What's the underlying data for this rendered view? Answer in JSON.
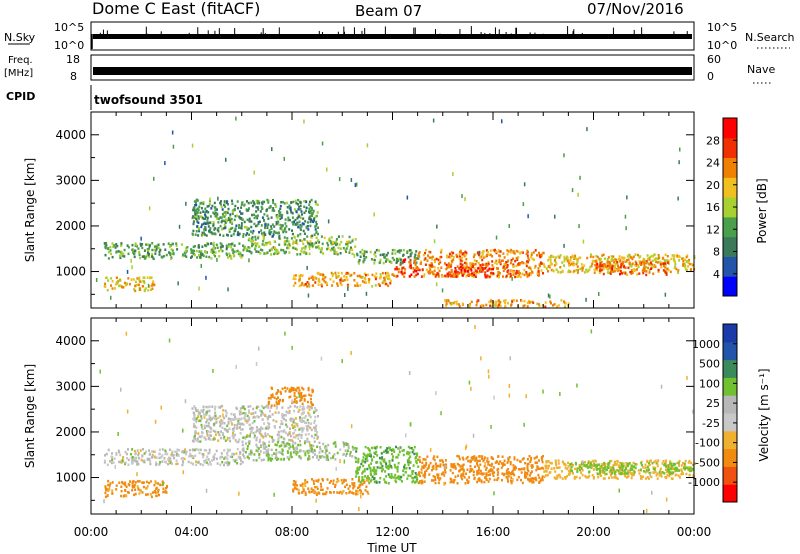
{
  "header": {
    "title": "Dome C East (fitACF)",
    "beam": "Beam 07",
    "date": "07/Nov/2016"
  },
  "strip_nsky": {
    "left_label": "N.Sky",
    "left_ticks": [
      "10^5",
      "10^0"
    ],
    "right_ticks": [
      "10^5",
      "10^0"
    ],
    "right_label": "N.Search"
  },
  "strip_freq": {
    "left_label": "Freq.",
    "left_unit": "[MHz]",
    "left_ticks": [
      "18",
      "8"
    ],
    "right_ticks": [
      "60",
      "0"
    ],
    "right_label": "Nave"
  },
  "cpid": {
    "label": "CPID",
    "text": "twofsound 3501"
  },
  "panels": {
    "power": {
      "ylabel": "Slant Range [km]",
      "yticks": [
        "4000",
        "3000",
        "2000",
        "1000"
      ],
      "colorbar_label": "Power [dB]",
      "colorbar_ticks": [
        "28",
        "24",
        "20",
        "16",
        "12",
        "8",
        "4"
      ]
    },
    "velocity": {
      "ylabel": "Slant Range [km]",
      "yticks": [
        "4000",
        "3000",
        "2000",
        "1000"
      ],
      "colorbar_label": "Velocity [m s⁻¹]",
      "colorbar_ticks": [
        "1000",
        "500",
        "100",
        "25",
        "-25",
        "-100",
        "-500",
        "-1000"
      ]
    }
  },
  "xaxis": {
    "label": "Time UT",
    "ticks": [
      "00:00",
      "04:00",
      "08:00",
      "12:00",
      "16:00",
      "20:00",
      "00:00"
    ]
  },
  "colors": {
    "power_scale": [
      "#0000ff",
      "#2255aa",
      "#3a7a5a",
      "#4aa04a",
      "#a8d030",
      "#f0c020",
      "#f08000",
      "#f03000",
      "#ff0000"
    ],
    "velocity_scale": [
      "#ff0000",
      "#f05010",
      "#f08a10",
      "#f0b030",
      "#c8c8c8",
      "#b8b8b8",
      "#70c030",
      "#3a8a5a",
      "#2255aa",
      "#1a3aaa"
    ]
  },
  "chart_data": {
    "type": "heatmap",
    "x_unit": "hours UT",
    "y_unit": "km",
    "xlim": [
      0,
      24
    ],
    "ylim": [
      200,
      4500
    ],
    "power_bands": [
      {
        "t": [
          0.5,
          6
        ],
        "r": [
          1300,
          1650
        ],
        "level": 12
      },
      {
        "t": [
          6,
          10.5
        ],
        "r": [
          1400,
          1800
        ],
        "level": 14
      },
      {
        "t": [
          10.5,
          13
        ],
        "r": [
          1200,
          1500
        ],
        "level": 12
      },
      {
        "t": [
          13,
          18
        ],
        "r": [
          900,
          1500
        ],
        "level": 24
      },
      {
        "t": [
          18,
          24
        ],
        "r": [
          1000,
          1400
        ],
        "level": 20
      },
      {
        "t": [
          0.5,
          2.5
        ],
        "r": [
          600,
          900
        ],
        "level": 20
      },
      {
        "t": [
          4,
          9
        ],
        "r": [
          1800,
          2600
        ],
        "level": 10
      },
      {
        "t": [
          8,
          12
        ],
        "r": [
          700,
          1000
        ],
        "level": 22
      },
      {
        "t": [
          12,
          13
        ],
        "r": [
          900,
          1300
        ],
        "level": 28
      },
      {
        "t": [
          14,
          16
        ],
        "r": [
          900,
          1200
        ],
        "level": 28
      },
      {
        "t": [
          20,
          23
        ],
        "r": [
          950,
          1250
        ],
        "level": 26
      },
      {
        "t": [
          14,
          19
        ],
        "r": [
          250,
          400
        ],
        "level": 22
      }
    ],
    "velocity_bands": [
      {
        "t": [
          0.5,
          6
        ],
        "r": [
          1300,
          1650
        ],
        "level": 0
      },
      {
        "t": [
          4,
          9
        ],
        "r": [
          1800,
          2600
        ],
        "level": 0
      },
      {
        "t": [
          6,
          10.5
        ],
        "r": [
          1400,
          1800
        ],
        "level": 25
      },
      {
        "t": [
          10.5,
          13
        ],
        "r": [
          900,
          1700
        ],
        "level": 80
      },
      {
        "t": [
          13,
          18
        ],
        "r": [
          900,
          1500
        ],
        "level": -150
      },
      {
        "t": [
          18,
          24
        ],
        "r": [
          1000,
          1400
        ],
        "level": -60
      },
      {
        "t": [
          0.5,
          3
        ],
        "r": [
          600,
          950
        ],
        "level": -120
      },
      {
        "t": [
          7,
          8.8
        ],
        "r": [
          2600,
          3000
        ],
        "level": -200
      },
      {
        "t": [
          8,
          11
        ],
        "r": [
          650,
          1000
        ],
        "level": -120
      },
      {
        "t": [
          19,
          24
        ],
        "r": [
          1100,
          1350
        ],
        "level": 60
      }
    ]
  }
}
